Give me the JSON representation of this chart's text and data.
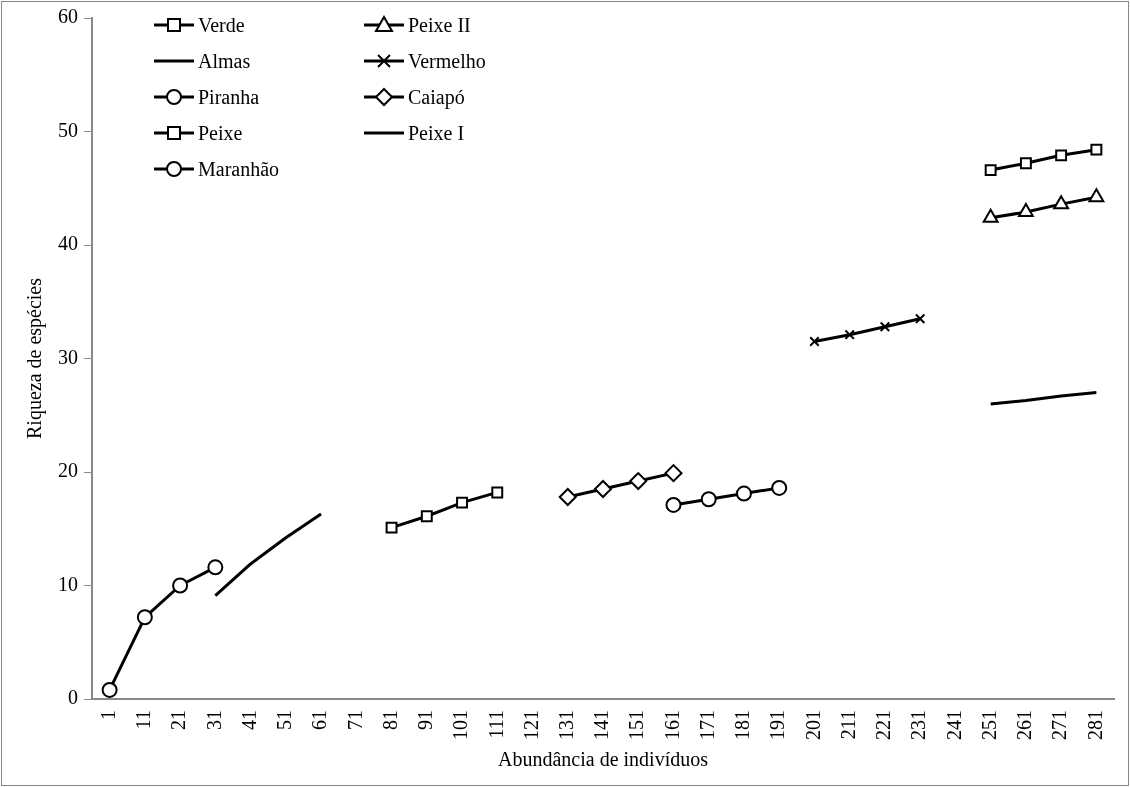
{
  "chart_data": {
    "type": "line",
    "xlabel": "Abundância de indivíduos",
    "ylabel": "Riqueza de espécies",
    "categories": [
      "1",
      "11",
      "21",
      "31",
      "41",
      "51",
      "61",
      "71",
      "81",
      "91",
      "101",
      "111",
      "121",
      "131",
      "141",
      "151",
      "161",
      "171",
      "181",
      "191",
      "201",
      "211",
      "221",
      "231",
      "241",
      "251",
      "261",
      "271",
      "281"
    ],
    "ylim": [
      0,
      60
    ],
    "yticks": [
      0,
      10,
      20,
      30,
      40,
      50,
      60
    ],
    "grid": false,
    "legend": "top left",
    "line_style": "solid",
    "series": [
      {
        "name": "Verde",
        "color": "#000000",
        "marker": "square",
        "values": [
          null,
          null,
          null,
          null,
          null,
          null,
          null,
          null,
          null,
          null,
          null,
          null,
          null,
          null,
          null,
          null,
          null,
          null,
          null,
          null,
          null,
          null,
          null,
          null,
          null,
          46.6,
          47.2,
          47.9,
          48.4
        ]
      },
      {
        "name": "Peixe II",
        "color": "#000000",
        "marker": "triangle",
        "values": [
          null,
          null,
          null,
          null,
          null,
          null,
          null,
          null,
          null,
          null,
          null,
          null,
          null,
          null,
          null,
          null,
          null,
          null,
          null,
          null,
          null,
          null,
          null,
          null,
          null,
          42.4,
          42.9,
          43.6,
          44.2
        ]
      },
      {
        "name": "Almas",
        "color": "#000000",
        "marker": "none",
        "values": [
          null,
          null,
          null,
          null,
          null,
          null,
          null,
          null,
          null,
          null,
          null,
          null,
          null,
          null,
          null,
          null,
          null,
          null,
          null,
          null,
          null,
          null,
          null,
          null,
          null,
          26.0,
          26.3,
          26.7,
          27.0
        ]
      },
      {
        "name": "Vermelho",
        "color": "#000000",
        "marker": "cross",
        "values": [
          null,
          null,
          null,
          null,
          null,
          null,
          null,
          null,
          null,
          null,
          null,
          null,
          null,
          null,
          null,
          null,
          null,
          null,
          null,
          null,
          31.5,
          32.1,
          32.8,
          33.5,
          null,
          null,
          null,
          null,
          null
        ]
      },
      {
        "name": "Piranha",
        "color": "#000000",
        "marker": "circle",
        "values": [
          null,
          null,
          null,
          null,
          null,
          null,
          null,
          null,
          null,
          null,
          null,
          null,
          null,
          null,
          null,
          null,
          17.1,
          17.6,
          18.1,
          18.6,
          null,
          null,
          null,
          null,
          null,
          null,
          null,
          null,
          null
        ]
      },
      {
        "name": "Caiapó",
        "color": "#000000",
        "marker": "diamond",
        "values": [
          null,
          null,
          null,
          null,
          null,
          null,
          null,
          null,
          null,
          null,
          null,
          null,
          null,
          17.8,
          18.5,
          19.2,
          19.9,
          null,
          null,
          null,
          null,
          null,
          null,
          null,
          null,
          null,
          null,
          null,
          null
        ]
      },
      {
        "name": "Peixe",
        "color": "#000000",
        "marker": "square",
        "values": [
          null,
          null,
          null,
          null,
          null,
          null,
          null,
          null,
          15.1,
          16.1,
          17.3,
          18.2,
          null,
          null,
          null,
          null,
          null,
          null,
          null,
          null,
          null,
          null,
          null,
          null,
          null,
          null,
          null,
          null,
          null
        ]
      },
      {
        "name": "Peixe I",
        "color": "#000000",
        "marker": "none",
        "values": [
          null,
          null,
          null,
          9.1,
          11.9,
          14.2,
          16.3,
          null,
          null,
          null,
          null,
          null,
          null,
          null,
          null,
          null,
          null,
          null,
          null,
          null,
          null,
          null,
          null,
          null,
          null,
          null,
          null,
          null,
          null
        ]
      },
      {
        "name": "Maranhão",
        "color": "#000000",
        "marker": "circle",
        "values": [
          0.8,
          7.2,
          10.0,
          11.6,
          null,
          null,
          null,
          null,
          null,
          null,
          null,
          null,
          null,
          null,
          null,
          null,
          null,
          null,
          null,
          null,
          null,
          null,
          null,
          null,
          null,
          null,
          null,
          null,
          null
        ]
      }
    ]
  }
}
